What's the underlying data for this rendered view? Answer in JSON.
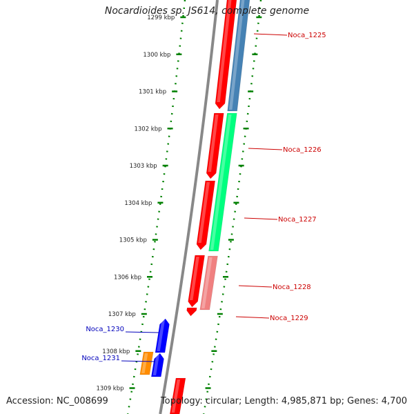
{
  "title": "Nocardioides sp. JS614, complete genome",
  "footer": {
    "accession": "Accession: NC_008699",
    "summary": "Topology: circular; Length: 4,985,871 bp; Genes: 4,700"
  },
  "scale_labels": [
    "1299 kbp",
    "1300 kbp",
    "1301 kbp",
    "1302 kbp",
    "1303 kbp",
    "1304 kbp",
    "1305 kbp",
    "1306 kbp",
    "1307 kbp",
    "1308 kbp",
    "1309 kbp"
  ],
  "gene_labels": [
    {
      "text": "Noca_1225",
      "color": "#cc0000"
    },
    {
      "text": "Noca_1226",
      "color": "#cc0000"
    },
    {
      "text": "Noca_1227",
      "color": "#cc0000"
    },
    {
      "text": "Noca_1228",
      "color": "#cc0000"
    },
    {
      "text": "Noca_1229",
      "color": "#cc0000"
    },
    {
      "text": "Noca_1230",
      "color": "#0000bb"
    },
    {
      "text": "Noca_1231",
      "color": "#0000bb"
    }
  ],
  "colors": {
    "forward_gene": "#ff0000",
    "reverse_gene": "#0000ff",
    "orange_feature": "#ff8c00",
    "feature_blue": "#4682b4",
    "feature_green": "#00ff7f",
    "feature_pink": "#f08080",
    "tick_green": "#008000",
    "backbone": "#888888"
  }
}
